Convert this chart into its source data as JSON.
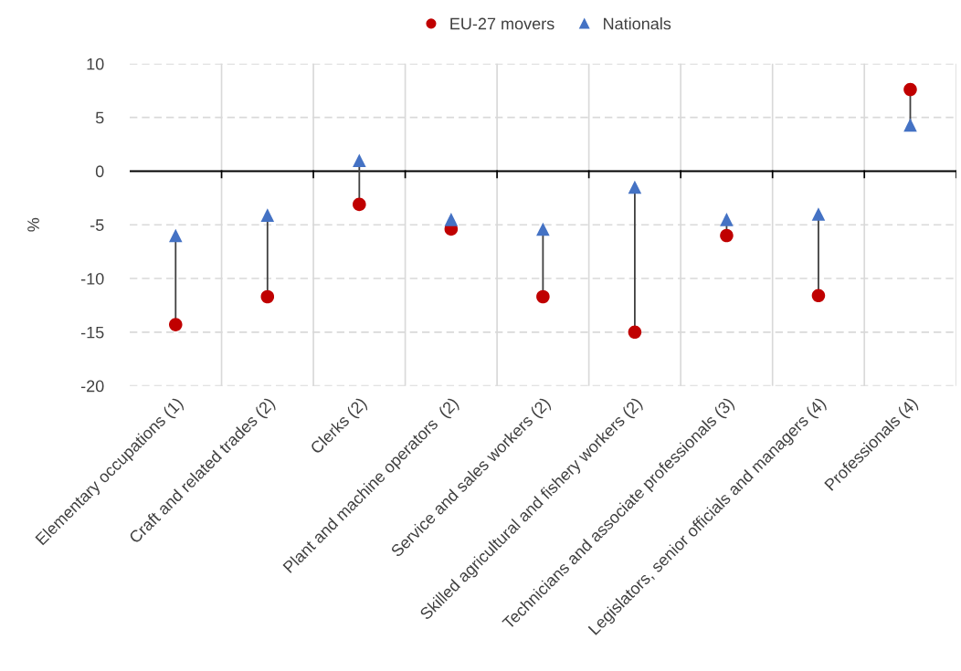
{
  "chart_data": {
    "type": "scatter",
    "ylabel": "%",
    "categories": [
      "Elementary occupations (1)",
      "Craft and related trades (2)",
      "Clerks (2)",
      "Plant and machine operators  (2)",
      "Service and sales workers (2)",
      "Skilled agricultural and fishery workers (2)",
      "Technicians and associate professionals (3)",
      "Legislators, senior officials and managers (4)",
      "Professionals (4)"
    ],
    "series": [
      {
        "name": "EU-27 movers",
        "color": "#c00000",
        "marker": "circle",
        "values": [
          -14.3,
          -11.7,
          -3.1,
          -5.4,
          -11.7,
          -15.0,
          -6.0,
          -11.6,
          7.6
        ]
      },
      {
        "name": "Nationals",
        "color": "#4472c4",
        "marker": "triangle",
        "values": [
          -6.0,
          -4.1,
          1.0,
          -4.5,
          -5.4,
          -1.5,
          -4.5,
          -4.0,
          4.3
        ]
      }
    ],
    "ylim": [
      -20,
      10
    ],
    "yticks": [
      -20,
      -15,
      -10,
      -5,
      0,
      5,
      10
    ],
    "grid": true,
    "legend": "top"
  }
}
